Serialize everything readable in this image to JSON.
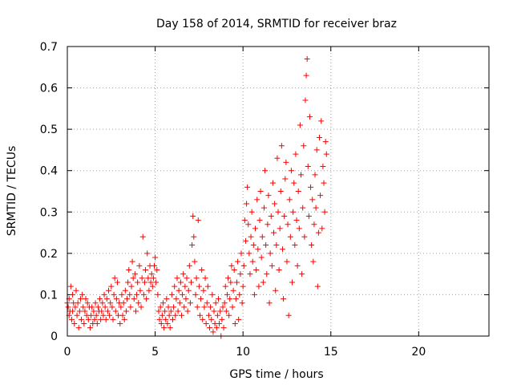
{
  "chart_data": {
    "type": "scatter",
    "title": "Day 158 of 2014, SRMTID for receiver braz",
    "xlabel": "GPS time / hours",
    "ylabel": "SRMTID / TECUs",
    "xlim": [
      0,
      24
    ],
    "ylim": [
      0,
      0.7
    ],
    "x_ticks": [
      "0",
      "5",
      "10",
      "15",
      "20"
    ],
    "y_ticks": [
      "0",
      "0.1",
      "0.2",
      "0.3",
      "0.4",
      "0.5",
      "0.6",
      "0.7"
    ],
    "grid": true,
    "marker": "+",
    "series": [
      {
        "name": "braz",
        "color": "#ff0000",
        "points": [
          [
            0.0,
            0.08
          ],
          [
            0.05,
            0.07
          ],
          [
            0.1,
            0.05
          ],
          [
            0.1,
            0.09
          ],
          [
            0.15,
            0.06
          ],
          [
            0.2,
            0.12
          ],
          [
            0.25,
            0.04
          ],
          [
            0.3,
            0.1
          ],
          [
            0.3,
            0.06
          ],
          [
            0.35,
            0.08
          ],
          [
            0.4,
            0.03
          ],
          [
            0.45,
            0.07
          ],
          [
            0.5,
            0.11
          ],
          [
            0.55,
            0.05
          ],
          [
            0.6,
            0.08
          ],
          [
            0.65,
            0.02
          ],
          [
            0.7,
            0.06
          ],
          [
            0.75,
            0.09
          ],
          [
            0.8,
            0.04
          ],
          [
            0.85,
            0.1
          ],
          [
            0.9,
            0.07
          ],
          [
            0.95,
            0.03
          ],
          [
            1.0,
            0.06
          ],
          [
            1.05,
            0.09
          ],
          [
            1.1,
            0.05
          ],
          [
            1.15,
            0.08
          ],
          [
            1.2,
            0.04
          ],
          [
            1.25,
            0.07
          ],
          [
            1.3,
            0.02
          ],
          [
            1.35,
            0.05
          ],
          [
            1.4,
            0.07
          ],
          [
            1.45,
            0.03
          ],
          [
            1.5,
            0.06
          ],
          [
            1.55,
            0.04
          ],
          [
            1.6,
            0.08
          ],
          [
            1.65,
            0.05
          ],
          [
            1.7,
            0.03
          ],
          [
            1.75,
            0.07
          ],
          [
            1.8,
            0.06
          ],
          [
            1.85,
            0.09
          ],
          [
            1.9,
            0.04
          ],
          [
            1.95,
            0.06
          ],
          [
            2.0,
            0.08
          ],
          [
            2.05,
            0.05
          ],
          [
            2.1,
            0.1
          ],
          [
            2.15,
            0.07
          ],
          [
            2.2,
            0.04
          ],
          [
            2.25,
            0.09
          ],
          [
            2.3,
            0.06
          ],
          [
            2.35,
            0.11
          ],
          [
            2.4,
            0.05
          ],
          [
            2.45,
            0.08
          ],
          [
            2.5,
            0.12
          ],
          [
            2.55,
            0.07
          ],
          [
            2.6,
            0.04
          ],
          [
            2.65,
            0.1
          ],
          [
            2.7,
            0.14
          ],
          [
            2.75,
            0.06
          ],
          [
            2.8,
            0.09
          ],
          [
            2.85,
            0.13
          ],
          [
            2.9,
            0.05
          ],
          [
            2.95,
            0.08
          ],
          [
            3.0,
            0.03
          ],
          [
            3.05,
            0.07
          ],
          [
            3.1,
            0.1
          ],
          [
            3.15,
            0.05
          ],
          [
            3.2,
            0.08
          ],
          [
            3.25,
            0.04
          ],
          [
            3.3,
            0.11
          ],
          [
            3.35,
            0.06
          ],
          [
            3.4,
            0.09
          ],
          [
            3.45,
            0.13
          ],
          [
            3.5,
            0.16
          ],
          [
            3.55,
            0.1
          ],
          [
            3.6,
            0.07
          ],
          [
            3.65,
            0.12
          ],
          [
            3.7,
            0.18
          ],
          [
            3.75,
            0.14
          ],
          [
            3.8,
            0.09
          ],
          [
            3.85,
            0.15
          ],
          [
            3.9,
            0.06
          ],
          [
            3.95,
            0.1
          ],
          [
            4.0,
            0.13
          ],
          [
            4.05,
            0.08
          ],
          [
            4.1,
            0.17
          ],
          [
            4.15,
            0.11
          ],
          [
            4.2,
            0.07
          ],
          [
            4.25,
            0.14
          ],
          [
            4.3,
            0.24
          ],
          [
            4.35,
            0.1
          ],
          [
            4.4,
            0.13
          ],
          [
            4.45,
            0.16
          ],
          [
            4.5,
            0.09
          ],
          [
            4.55,
            0.2
          ],
          [
            4.6,
            0.14
          ],
          [
            4.65,
            0.11
          ],
          [
            4.7,
            0.17
          ],
          [
            4.75,
            0.13
          ],
          [
            4.8,
            0.15
          ],
          [
            4.85,
            0.12
          ],
          [
            4.9,
            0.14
          ],
          [
            4.95,
            0.17
          ],
          [
            5.0,
            0.19
          ],
          [
            5.05,
            0.13
          ],
          [
            5.1,
            0.16
          ],
          [
            5.15,
            0.1
          ],
          [
            5.2,
            0.06
          ],
          [
            5.25,
            0.04
          ],
          [
            5.3,
            0.07
          ],
          [
            5.35,
            0.03
          ],
          [
            5.4,
            0.05
          ],
          [
            5.45,
            0.08
          ],
          [
            5.5,
            0.02
          ],
          [
            5.55,
            0.06
          ],
          [
            5.6,
            0.04
          ],
          [
            5.65,
            0.09
          ],
          [
            5.7,
            0.03
          ],
          [
            5.75,
            0.07
          ],
          [
            5.8,
            0.05
          ],
          [
            5.85,
            0.02
          ],
          [
            5.9,
            0.06
          ],
          [
            5.95,
            0.1
          ],
          [
            6.0,
            0.04
          ],
          [
            6.05,
            0.07
          ],
          [
            6.1,
            0.12
          ],
          [
            6.15,
            0.05
          ],
          [
            6.2,
            0.09
          ],
          [
            6.25,
            0.14
          ],
          [
            6.3,
            0.06
          ],
          [
            6.35,
            0.11
          ],
          [
            6.4,
            0.08
          ],
          [
            6.45,
            0.13
          ],
          [
            6.5,
            0.05
          ],
          [
            6.55,
            0.1
          ],
          [
            6.6,
            0.15
          ],
          [
            6.65,
            0.07
          ],
          [
            6.7,
            0.12
          ],
          [
            6.75,
            0.09
          ],
          [
            6.8,
            0.14
          ],
          [
            6.85,
            0.06
          ],
          [
            6.9,
            0.11
          ],
          [
            6.95,
            0.17
          ],
          [
            7.0,
            0.08
          ],
          [
            7.05,
            0.13
          ],
          [
            7.1,
            0.22
          ],
          [
            7.15,
            0.29
          ],
          [
            7.2,
            0.24
          ],
          [
            7.25,
            0.18
          ],
          [
            7.3,
            0.1
          ],
          [
            7.35,
            0.14
          ],
          [
            7.4,
            0.07
          ],
          [
            7.45,
            0.28
          ],
          [
            7.5,
            0.12
          ],
          [
            7.55,
            0.05
          ],
          [
            7.6,
            0.09
          ],
          [
            7.65,
            0.16
          ],
          [
            7.7,
            0.04
          ],
          [
            7.75,
            0.11
          ],
          [
            7.8,
            0.07
          ],
          [
            7.85,
            0.14
          ],
          [
            7.9,
            0.03
          ],
          [
            7.95,
            0.08
          ],
          [
            8.0,
            0.12
          ],
          [
            8.05,
            0.05
          ],
          [
            8.1,
            0.02
          ],
          [
            8.15,
            0.07
          ],
          [
            8.2,
            0.04
          ],
          [
            8.25,
            0.1
          ],
          [
            8.3,
            0.01
          ],
          [
            8.35,
            0.06
          ],
          [
            8.4,
            0.03
          ],
          [
            8.45,
            0.08
          ],
          [
            8.5,
            0.02
          ],
          [
            8.55,
            0.05
          ],
          [
            8.6,
            0.09
          ],
          [
            8.65,
            0.03
          ],
          [
            8.7,
            0.06
          ],
          [
            8.75,
            0.0
          ],
          [
            8.8,
            0.04
          ],
          [
            8.85,
            0.07
          ],
          [
            8.9,
            0.02
          ],
          [
            8.95,
            0.08
          ],
          [
            9.0,
            0.12
          ],
          [
            9.05,
            0.06
          ],
          [
            9.1,
            0.1
          ],
          [
            9.15,
            0.14
          ],
          [
            9.2,
            0.05
          ],
          [
            9.25,
            0.09
          ],
          [
            9.3,
            0.13
          ],
          [
            9.35,
            0.17
          ],
          [
            9.4,
            0.07
          ],
          [
            9.45,
            0.11
          ],
          [
            9.5,
            0.16
          ],
          [
            9.55,
            0.03
          ],
          [
            9.6,
            0.09
          ],
          [
            9.65,
            0.13
          ],
          [
            9.7,
            0.18
          ],
          [
            9.75,
            0.04
          ],
          [
            9.8,
            0.1
          ],
          [
            9.85,
            0.15
          ],
          [
            9.9,
            0.2
          ],
          [
            9.95,
            0.08
          ],
          [
            10.0,
            0.12
          ],
          [
            10.05,
            0.17
          ],
          [
            10.1,
            0.28
          ],
          [
            10.15,
            0.23
          ],
          [
            10.2,
            0.32
          ],
          [
            10.25,
            0.36
          ],
          [
            10.3,
            0.27
          ],
          [
            10.35,
            0.2
          ],
          [
            10.4,
            0.15
          ],
          [
            10.45,
            0.24
          ],
          [
            10.5,
            0.3
          ],
          [
            10.55,
            0.18
          ],
          [
            10.6,
            0.22
          ],
          [
            10.65,
            0.1
          ],
          [
            10.7,
            0.26
          ],
          [
            10.75,
            0.16
          ],
          [
            10.8,
            0.33
          ],
          [
            10.85,
            0.21
          ],
          [
            10.9,
            0.12
          ],
          [
            10.95,
            0.28
          ],
          [
            11.0,
            0.35
          ],
          [
            11.05,
            0.19
          ],
          [
            11.1,
            0.24
          ],
          [
            11.15,
            0.13
          ],
          [
            11.2,
            0.31
          ],
          [
            11.25,
            0.4
          ],
          [
            11.3,
            0.22
          ],
          [
            11.35,
            0.15
          ],
          [
            11.4,
            0.27
          ],
          [
            11.45,
            0.34
          ],
          [
            11.5,
            0.08
          ],
          [
            11.55,
            0.2
          ],
          [
            11.6,
            0.29
          ],
          [
            11.65,
            0.17
          ],
          [
            11.7,
            0.37
          ],
          [
            11.75,
            0.25
          ],
          [
            11.8,
            0.32
          ],
          [
            11.85,
            0.11
          ],
          [
            11.9,
            0.22
          ],
          [
            11.95,
            0.43
          ],
          [
            12.0,
            0.3
          ],
          [
            12.05,
            0.16
          ],
          [
            12.1,
            0.26
          ],
          [
            12.15,
            0.35
          ],
          [
            12.2,
            0.46
          ],
          [
            12.25,
            0.21
          ],
          [
            12.3,
            0.09
          ],
          [
            12.35,
            0.29
          ],
          [
            12.4,
            0.38
          ],
          [
            12.45,
            0.42
          ],
          [
            12.5,
            0.18
          ],
          [
            12.55,
            0.27
          ],
          [
            12.6,
            0.05
          ],
          [
            12.65,
            0.33
          ],
          [
            12.7,
            0.24
          ],
          [
            12.75,
            0.4
          ],
          [
            12.8,
            0.13
          ],
          [
            12.85,
            0.3
          ],
          [
            12.9,
            0.37
          ],
          [
            12.95,
            0.22
          ],
          [
            13.0,
            0.44
          ],
          [
            13.05,
            0.28
          ],
          [
            13.1,
            0.17
          ],
          [
            13.15,
            0.35
          ],
          [
            13.2,
            0.26
          ],
          [
            13.25,
            0.51
          ],
          [
            13.3,
            0.39
          ],
          [
            13.35,
            0.15
          ],
          [
            13.4,
            0.31
          ],
          [
            13.45,
            0.46
          ],
          [
            13.5,
            0.24
          ],
          [
            13.55,
            0.57
          ],
          [
            13.6,
            0.63
          ],
          [
            13.65,
            0.67
          ],
          [
            13.7,
            0.41
          ],
          [
            13.75,
            0.29
          ],
          [
            13.8,
            0.53
          ],
          [
            13.85,
            0.36
          ],
          [
            13.9,
            0.22
          ],
          [
            13.95,
            0.33
          ],
          [
            14.0,
            0.18
          ],
          [
            14.05,
            0.27
          ],
          [
            14.1,
            0.39
          ],
          [
            14.15,
            0.31
          ],
          [
            14.2,
            0.45
          ],
          [
            14.25,
            0.12
          ],
          [
            14.3,
            0.25
          ],
          [
            14.35,
            0.48
          ],
          [
            14.4,
            0.34
          ],
          [
            14.45,
            0.52
          ],
          [
            14.5,
            0.26
          ],
          [
            14.55,
            0.41
          ],
          [
            14.6,
            0.37
          ],
          [
            14.65,
            0.3
          ],
          [
            14.7,
            0.47
          ],
          [
            14.75,
            0.44
          ]
        ]
      }
    ]
  }
}
